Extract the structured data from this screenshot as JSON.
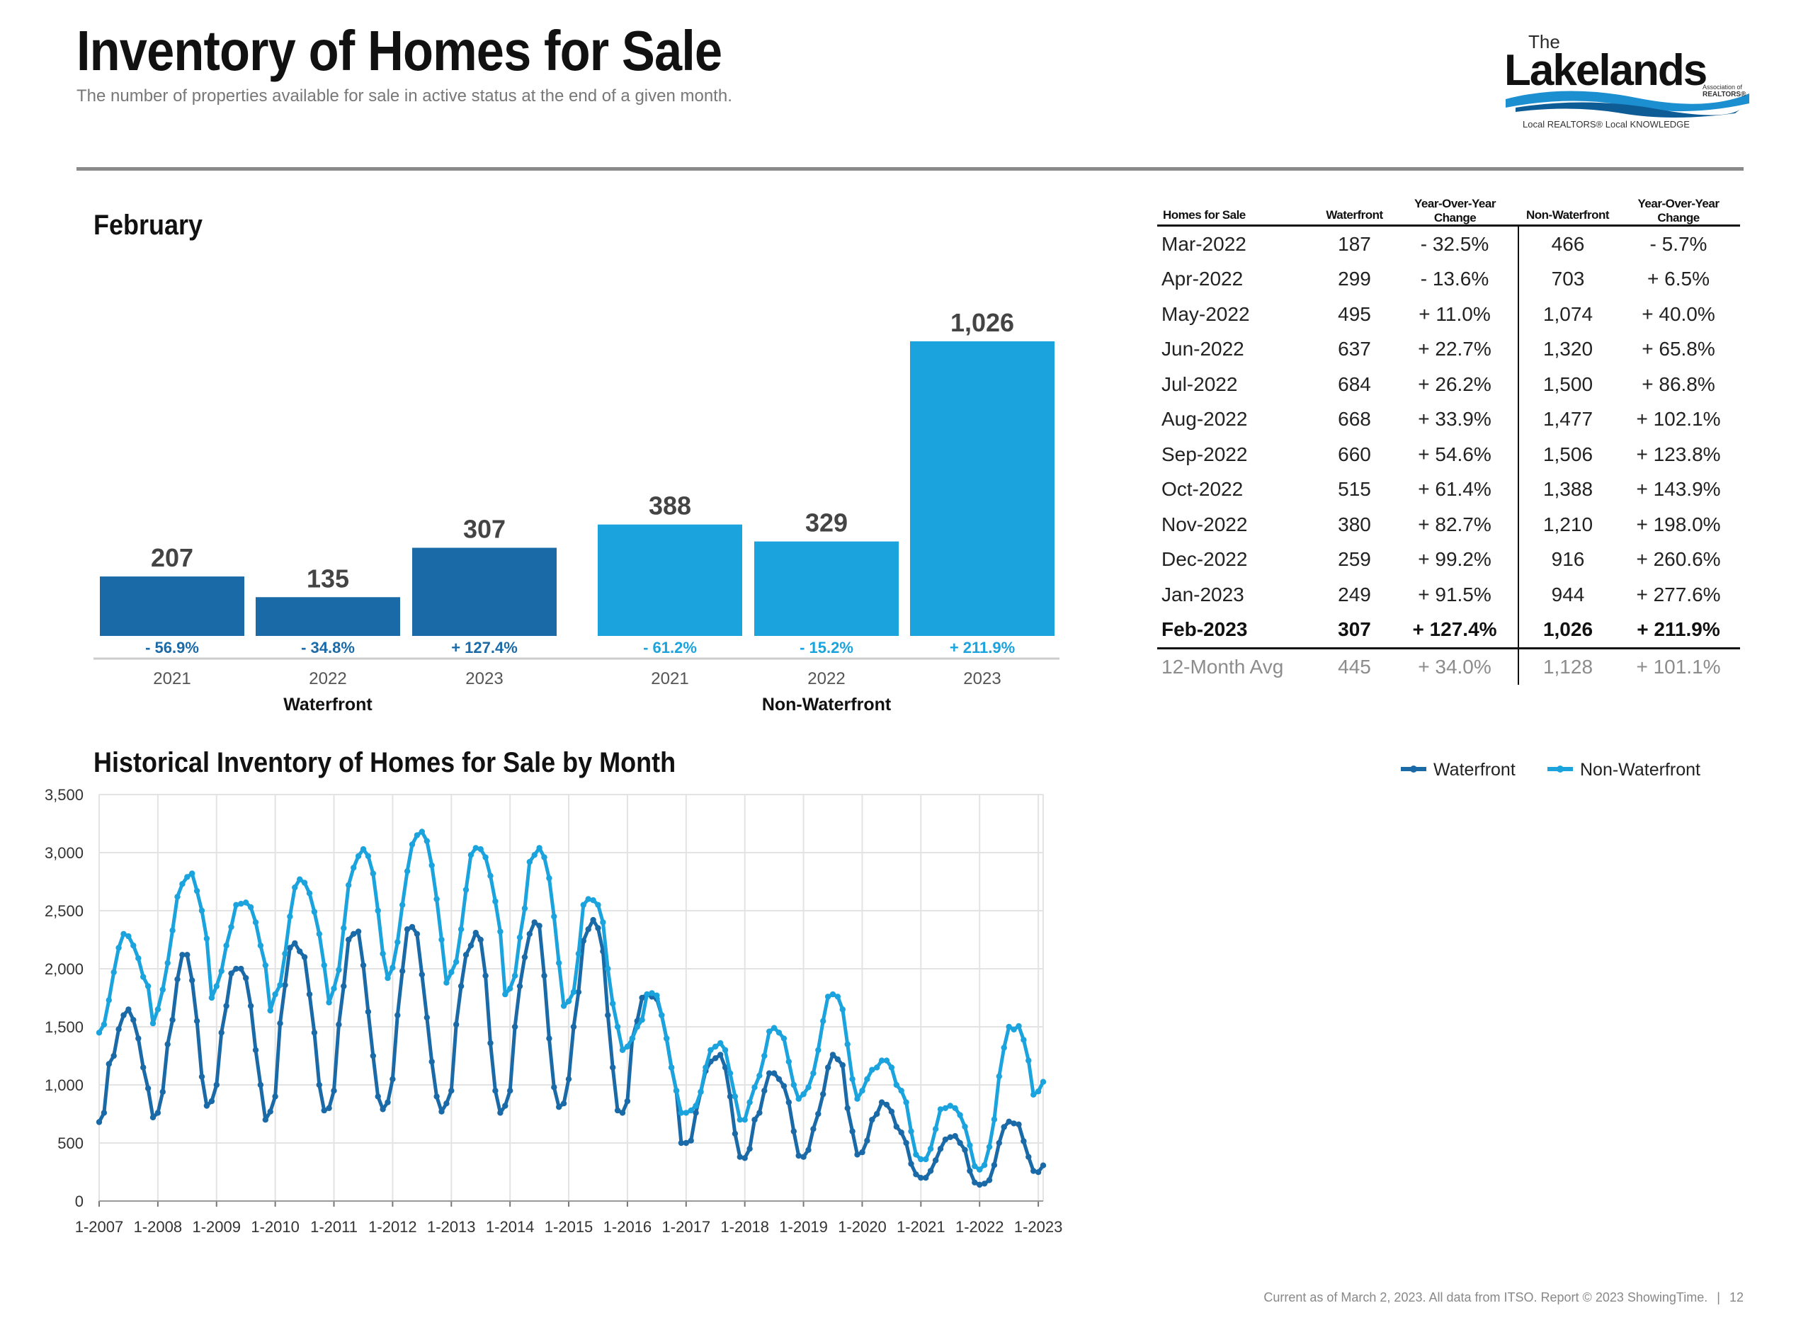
{
  "header": {
    "title": "Inventory of Homes for Sale",
    "subtitle": "The number of properties available for sale in active status at the end of a given month."
  },
  "logo": {
    "the": "The",
    "name": "Lakelands",
    "association_line1": "Association of",
    "association_line2": "REALTORS®",
    "tagline": "Local REALTORS® Local KNOWLEDGE"
  },
  "colors": {
    "waterfront": "#1b6aa8",
    "non_waterfront": "#1ba3dd",
    "rule": "#8a8a8a"
  },
  "monthly_section": {
    "title": "February"
  },
  "historical_section": {
    "title": "Historical Inventory of Homes for Sale by Month"
  },
  "table": {
    "headers": [
      "Homes for Sale",
      "Waterfront",
      "Year-Over-Year Change",
      "Non-Waterfront",
      "Year-Over-Year Change"
    ],
    "rows": [
      [
        "Mar-2022",
        "187",
        "- 32.5%",
        "466",
        "- 5.7%"
      ],
      [
        "Apr-2022",
        "299",
        "- 13.6%",
        "703",
        "+ 6.5%"
      ],
      [
        "May-2022",
        "495",
        "+ 11.0%",
        "1,074",
        "+ 40.0%"
      ],
      [
        "Jun-2022",
        "637",
        "+ 22.7%",
        "1,320",
        "+ 65.8%"
      ],
      [
        "Jul-2022",
        "684",
        "+ 26.2%",
        "1,500",
        "+ 86.8%"
      ],
      [
        "Aug-2022",
        "668",
        "+ 33.9%",
        "1,477",
        "+ 102.1%"
      ],
      [
        "Sep-2022",
        "660",
        "+ 54.6%",
        "1,506",
        "+ 123.8%"
      ],
      [
        "Oct-2022",
        "515",
        "+ 61.4%",
        "1,388",
        "+ 143.9%"
      ],
      [
        "Nov-2022",
        "380",
        "+ 82.7%",
        "1,210",
        "+ 198.0%"
      ],
      [
        "Dec-2022",
        "259",
        "+ 99.2%",
        "916",
        "+ 260.6%"
      ],
      [
        "Jan-2023",
        "249",
        "+ 91.5%",
        "944",
        "+ 277.6%"
      ],
      [
        "Feb-2023",
        "307",
        "+ 127.4%",
        "1,026",
        "+ 211.9%"
      ]
    ],
    "average_row": [
      "12-Month Avg",
      "445",
      "+ 34.0%",
      "1,128",
      "+ 101.1%"
    ]
  },
  "chart_data": [
    {
      "type": "bar",
      "title": "February",
      "groups": [
        {
          "name": "Waterfront",
          "categories": [
            "2021",
            "2022",
            "2023"
          ],
          "values": [
            207,
            135,
            307
          ],
          "value_labels": [
            "207",
            "135",
            "307"
          ],
          "change_labels": [
            "- 56.9%",
            "- 34.8%",
            "+ 127.4%"
          ]
        },
        {
          "name": "Non-Waterfront",
          "categories": [
            "2021",
            "2022",
            "2023"
          ],
          "values": [
            388,
            329,
            1026
          ],
          "value_labels": [
            "388",
            "329",
            "1,026"
          ],
          "change_labels": [
            "- 61.2%",
            "- 15.2%",
            "+ 211.9%"
          ]
        }
      ]
    },
    {
      "type": "line",
      "title": "Historical Inventory of Homes for Sale by Month",
      "x_start": "1-2007",
      "x_end": "2-2023",
      "x_tick_labels": [
        "1-2007",
        "1-2008",
        "1-2009",
        "1-2010",
        "1-2011",
        "1-2012",
        "1-2013",
        "1-2014",
        "1-2015",
        "1-2016",
        "1-2017",
        "1-2018",
        "1-2019",
        "1-2020",
        "1-2021",
        "1-2022",
        "1-2023"
      ],
      "y_tick_labels": [
        "0",
        "500",
        "1,000",
        "1,500",
        "2,000",
        "2,500",
        "3,000",
        "3,500"
      ],
      "ylim": [
        0,
        3500
      ],
      "grid": true,
      "legend_position": "top-right",
      "series": [
        {
          "name": "Waterfront",
          "values": [
            680,
            760,
            1180,
            1250,
            1480,
            1600,
            1650,
            1560,
            1400,
            1150,
            970,
            720,
            760,
            940,
            1350,
            1560,
            1910,
            2120,
            2120,
            1900,
            1550,
            1070,
            820,
            860,
            1000,
            1450,
            1680,
            1960,
            2000,
            2000,
            1920,
            1680,
            1300,
            1000,
            700,
            770,
            900,
            1530,
            1860,
            2180,
            2220,
            2150,
            2100,
            1780,
            1450,
            1000,
            780,
            800,
            950,
            1520,
            1850,
            2250,
            2300,
            2320,
            2030,
            1630,
            1250,
            900,
            790,
            850,
            1050,
            1600,
            1980,
            2340,
            2360,
            2300,
            1950,
            1580,
            1200,
            900,
            770,
            840,
            950,
            1520,
            1850,
            2120,
            2200,
            2310,
            2250,
            1940,
            1360,
            950,
            760,
            820,
            950,
            1500,
            1850,
            2100,
            2300,
            2400,
            2370,
            1940,
            1400,
            980,
            810,
            840,
            1050,
            1500,
            1800,
            2240,
            2340,
            2420,
            2350,
            2150,
            1600,
            1150,
            780,
            760,
            860,
            1400,
            1550,
            1750,
            1780,
            1760,
            1740,
            1600,
            1400,
            1150,
            950,
            500,
            500,
            520,
            760,
            940,
            1120,
            1200,
            1230,
            1260,
            1150,
            900,
            580,
            380,
            370,
            450,
            700,
            760,
            950,
            1100,
            1100,
            1050,
            990,
            850,
            600,
            390,
            380,
            440,
            620,
            750,
            920,
            1150,
            1260,
            1220,
            1170,
            800,
            600,
            400,
            420,
            520,
            700,
            750,
            850,
            830,
            770,
            640,
            590,
            500,
            320,
            230,
            200,
            200,
            260,
            350,
            450,
            530,
            550,
            560,
            500,
            440,
            260,
            160,
            140,
            150,
            180,
            310,
            500,
            637,
            684,
            668,
            660,
            515,
            380,
            259,
            249,
            307
          ]
        },
        {
          "name": "Non-Waterfront",
          "values": [
            1450,
            1520,
            1730,
            1970,
            2180,
            2300,
            2280,
            2200,
            2090,
            1930,
            1850,
            1530,
            1650,
            1820,
            2050,
            2330,
            2620,
            2730,
            2790,
            2820,
            2670,
            2500,
            2260,
            1750,
            1850,
            1980,
            2200,
            2360,
            2550,
            2560,
            2570,
            2530,
            2400,
            2200,
            2030,
            1640,
            1780,
            1860,
            2130,
            2450,
            2700,
            2770,
            2740,
            2650,
            2490,
            2300,
            2030,
            1710,
            1830,
            1990,
            2350,
            2720,
            2870,
            2970,
            3030,
            2970,
            2820,
            2500,
            2130,
            1920,
            2010,
            2230,
            2550,
            2840,
            3070,
            3150,
            3180,
            3100,
            2890,
            2600,
            2250,
            1880,
            1970,
            2060,
            2340,
            2680,
            2980,
            3040,
            3030,
            2960,
            2800,
            2580,
            2320,
            1780,
            1830,
            1940,
            2270,
            2520,
            2920,
            2980,
            3040,
            2960,
            2780,
            2450,
            2050,
            1680,
            1720,
            1800,
            2130,
            2550,
            2600,
            2590,
            2550,
            2400,
            2000,
            1700,
            1500,
            1300,
            1330,
            1400,
            1500,
            1560,
            1780,
            1790,
            1770,
            1600,
            1400,
            1150,
            950,
            760,
            760,
            780,
            820,
            940,
            1150,
            1300,
            1330,
            1360,
            1300,
            1100,
            900,
            700,
            700,
            850,
            980,
            1080,
            1250,
            1460,
            1490,
            1450,
            1400,
            1200,
            1000,
            880,
            920,
            980,
            1100,
            1300,
            1550,
            1760,
            1780,
            1760,
            1650,
            1350,
            1050,
            880,
            950,
            1050,
            1130,
            1150,
            1210,
            1210,
            1150,
            1000,
            950,
            850,
            600,
            400,
            360,
            360,
            450,
            620,
            790,
            800,
            820,
            800,
            740,
            640,
            480,
            300,
            270,
            310,
            466,
            703,
            1074,
            1320,
            1500,
            1477,
            1506,
            1388,
            1210,
            916,
            944,
            1026
          ]
        }
      ]
    }
  ],
  "footer": {
    "note": "Current as of March 2, 2023. All data from ITSO. Report © 2023 ShowingTime.",
    "separator": "|",
    "page_number": "12"
  }
}
